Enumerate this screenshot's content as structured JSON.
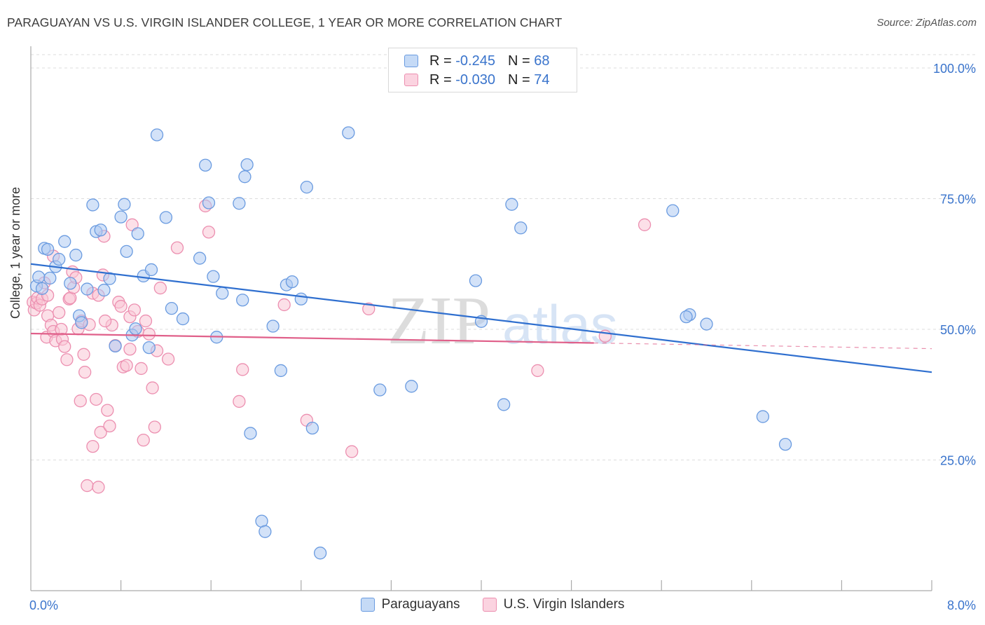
{
  "title": "PARAGUAYAN VS U.S. VIRGIN ISLANDER COLLEGE, 1 YEAR OR MORE CORRELATION CHART",
  "source": "Source: ZipAtlas.com",
  "watermark": {
    "zip": "ZIP",
    "atlas": "atlas"
  },
  "colors": {
    "blue_fill": "#aecbf2",
    "blue_stroke": "#6a9be0",
    "blue_line": "#2f6fcf",
    "pink_fill": "#f9c6d6",
    "pink_stroke": "#ec8fb0",
    "pink_line": "#e0608a",
    "axis_label": "#3a74cc",
    "grid": "#dddddd"
  },
  "legend": {
    "r_label": "R =",
    "n_label": "N =",
    "rows": [
      {
        "r": "-0.245",
        "n": "68"
      },
      {
        "r": "-0.030",
        "n": "74"
      }
    ]
  },
  "chart_data": {
    "type": "scatter",
    "title": "PARAGUAYAN VS U.S. VIRGIN ISLANDER COLLEGE, 1 YEAR OR MORE CORRELATION CHART",
    "xlabel": "",
    "ylabel": "College, 1 year or more",
    "xlim": [
      0,
      8
    ],
    "ylim": [
      0,
      105
    ],
    "x_tick_labels": [
      "0.0%",
      "8.0%"
    ],
    "y_ticks": [
      25,
      50,
      75,
      100
    ],
    "y_tick_labels": [
      "25.0%",
      "50.0%",
      "75.0%",
      "100.0%"
    ],
    "grid": true,
    "legend_position": "top-center",
    "series": [
      {
        "name": "Paraguayans",
        "r": -0.245,
        "n": 68,
        "trend": {
          "x": [
            0,
            8
          ],
          "y": [
            62.5,
            41.8
          ],
          "dashed_from": null
        },
        "points": [
          [
            0.05,
            58.3
          ],
          [
            0.07,
            60.0
          ],
          [
            0.1,
            57.8
          ],
          [
            0.12,
            65.5
          ],
          [
            0.15,
            65.3
          ],
          [
            0.17,
            59.8
          ],
          [
            0.22,
            62.0
          ],
          [
            0.25,
            63.4
          ],
          [
            0.3,
            66.8
          ],
          [
            0.35,
            58.8
          ],
          [
            0.4,
            64.2
          ],
          [
            0.43,
            52.6
          ],
          [
            0.45,
            51.3
          ],
          [
            0.5,
            57.7
          ],
          [
            0.55,
            73.8
          ],
          [
            0.58,
            68.7
          ],
          [
            0.62,
            69.0
          ],
          [
            0.65,
            57.5
          ],
          [
            0.7,
            59.7
          ],
          [
            0.75,
            46.8
          ],
          [
            0.8,
            71.5
          ],
          [
            0.83,
            73.9
          ],
          [
            0.85,
            64.9
          ],
          [
            0.9,
            48.9
          ],
          [
            0.93,
            50.1
          ],
          [
            0.95,
            68.3
          ],
          [
            1.0,
            60.2
          ],
          [
            1.05,
            46.5
          ],
          [
            1.07,
            61.4
          ],
          [
            1.12,
            87.2
          ],
          [
            1.2,
            71.4
          ],
          [
            1.25,
            54.0
          ],
          [
            1.5,
            63.6
          ],
          [
            1.55,
            81.4
          ],
          [
            1.58,
            74.2
          ],
          [
            1.62,
            60.1
          ],
          [
            1.65,
            48.5
          ],
          [
            1.7,
            56.9
          ],
          [
            1.85,
            74.1
          ],
          [
            1.88,
            55.6
          ],
          [
            1.9,
            79.2
          ],
          [
            1.92,
            81.5
          ],
          [
            1.95,
            30.1
          ],
          [
            2.05,
            13.3
          ],
          [
            2.08,
            11.3
          ],
          [
            2.15,
            50.6
          ],
          [
            2.22,
            42.1
          ],
          [
            2.27,
            58.5
          ],
          [
            2.32,
            59.1
          ],
          [
            2.4,
            55.8
          ],
          [
            2.45,
            77.2
          ],
          [
            2.5,
            31.1
          ],
          [
            2.57,
            7.2
          ],
          [
            2.82,
            87.6
          ],
          [
            3.1,
            38.4
          ],
          [
            3.38,
            39.1
          ],
          [
            3.95,
            59.3
          ],
          [
            4.2,
            35.6
          ],
          [
            4.27,
            73.9
          ],
          [
            4.35,
            69.4
          ],
          [
            5.7,
            72.7
          ],
          [
            5.85,
            52.8
          ],
          [
            5.82,
            52.4
          ],
          [
            6.5,
            33.3
          ],
          [
            6.0,
            51.0
          ],
          [
            6.7,
            28.0
          ],
          [
            4.0,
            51.5
          ],
          [
            1.35,
            52.0
          ]
        ]
      },
      {
        "name": "U.S. Virgin Islanders",
        "r": -0.03,
        "n": 74,
        "trend": {
          "x": [
            0,
            8
          ],
          "y": [
            49.2,
            46.3
          ],
          "dashed_from": 5.0
        },
        "points": [
          [
            0.02,
            55.2
          ],
          [
            0.03,
            53.7
          ],
          [
            0.05,
            55.0
          ],
          [
            0.06,
            56.0
          ],
          [
            0.08,
            54.6
          ],
          [
            0.1,
            55.8
          ],
          [
            0.12,
            58.9
          ],
          [
            0.14,
            48.5
          ],
          [
            0.15,
            52.6
          ],
          [
            0.18,
            50.8
          ],
          [
            0.2,
            49.6
          ],
          [
            0.22,
            47.8
          ],
          [
            0.25,
            53.2
          ],
          [
            0.27,
            50.0
          ],
          [
            0.28,
            48.1
          ],
          [
            0.3,
            46.7
          ],
          [
            0.32,
            44.2
          ],
          [
            0.34,
            55.8
          ],
          [
            0.35,
            56.0
          ],
          [
            0.37,
            61.0
          ],
          [
            0.38,
            58.0
          ],
          [
            0.4,
            59.9
          ],
          [
            0.42,
            50.1
          ],
          [
            0.44,
            36.3
          ],
          [
            0.45,
            51.6
          ],
          [
            0.47,
            45.2
          ],
          [
            0.48,
            41.8
          ],
          [
            0.5,
            20.1
          ],
          [
            0.52,
            50.9
          ],
          [
            0.55,
            27.6
          ],
          [
            0.55,
            56.9
          ],
          [
            0.58,
            36.6
          ],
          [
            0.6,
            56.5
          ],
          [
            0.62,
            30.3
          ],
          [
            0.64,
            60.4
          ],
          [
            0.65,
            67.8
          ],
          [
            0.68,
            34.5
          ],
          [
            0.7,
            31.5
          ],
          [
            0.72,
            50.8
          ],
          [
            0.75,
            46.9
          ],
          [
            0.78,
            55.2
          ],
          [
            0.8,
            54.4
          ],
          [
            0.82,
            42.8
          ],
          [
            0.85,
            43.1
          ],
          [
            0.88,
            52.4
          ],
          [
            0.9,
            70.0
          ],
          [
            0.92,
            53.7
          ],
          [
            0.95,
            49.6
          ],
          [
            0.98,
            42.5
          ],
          [
            1.0,
            28.8
          ],
          [
            1.02,
            51.6
          ],
          [
            1.05,
            49.1
          ],
          [
            1.08,
            38.8
          ],
          [
            1.1,
            31.3
          ],
          [
            1.12,
            45.9
          ],
          [
            1.3,
            65.6
          ],
          [
            1.55,
            73.6
          ],
          [
            1.58,
            68.6
          ],
          [
            1.85,
            36.2
          ],
          [
            1.88,
            42.3
          ],
          [
            2.25,
            54.7
          ],
          [
            2.45,
            32.6
          ],
          [
            2.85,
            26.6
          ],
          [
            3.0,
            53.9
          ],
          [
            4.5,
            42.1
          ],
          [
            5.1,
            48.7
          ],
          [
            5.45,
            70.0
          ],
          [
            1.22,
            44.3
          ],
          [
            0.15,
            56.5
          ],
          [
            0.6,
            19.8
          ],
          [
            0.2,
            64.0
          ],
          [
            0.66,
            51.6
          ],
          [
            1.15,
            57.9
          ],
          [
            0.88,
            46.2
          ]
        ]
      }
    ]
  }
}
